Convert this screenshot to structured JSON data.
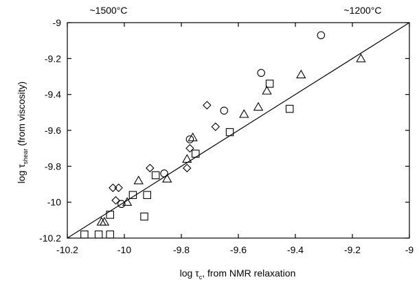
{
  "chart_data": {
    "type": "scatter",
    "title": "",
    "annotations": [
      "~1500°C",
      "~1200°C"
    ],
    "xlabel": {
      "main": "log τ",
      "sub": "c",
      "rest": ", from NMR relaxation"
    },
    "ylabel": {
      "main": "log τ",
      "sub": "shear",
      "rest": " (from viscosity)"
    },
    "xlim": [
      -10.2,
      -9.0
    ],
    "ylim": [
      -10.2,
      -9.0
    ],
    "xticks": [
      -10.2,
      -10.0,
      -9.8,
      -9.6,
      -9.4,
      -9.2,
      -9.0
    ],
    "xtick_labels": [
      "-10.2",
      "-10",
      "-9.8",
      "-9.6",
      "-9.4",
      "-9.2",
      "-9"
    ],
    "yticks": [
      -10.2,
      -10.0,
      -9.8,
      -9.6,
      -9.4,
      -9.2,
      -9.0
    ],
    "ytick_labels": [
      "-10.2",
      "-10",
      "-9.8",
      "-9.6",
      "-9.4",
      "-9.2",
      "-9"
    ],
    "grid": false,
    "reference_line": {
      "x": [
        -10.2,
        -9.0
      ],
      "y": [
        -10.2,
        -9.0
      ]
    },
    "series": [
      {
        "marker": "circle",
        "x": [
          -9.31,
          -9.52,
          -9.65,
          -9.77,
          -9.86,
          -10.01
        ],
        "y": [
          -9.07,
          -9.28,
          -9.49,
          -9.65,
          -9.84,
          -10.01
        ]
      },
      {
        "marker": "triangle",
        "x": [
          -9.17,
          -9.38,
          -9.5,
          -9.53,
          -9.58,
          -9.76,
          -9.78,
          -9.85,
          -9.95,
          -9.99,
          -10.08,
          -10.07
        ],
        "y": [
          -9.2,
          -9.29,
          -9.38,
          -9.47,
          -9.51,
          -9.64,
          -9.76,
          -9.87,
          -9.88,
          -10.0,
          -10.11,
          -10.11
        ]
      },
      {
        "marker": "square",
        "x": [
          -9.49,
          -9.42,
          -9.63,
          -9.75,
          -9.89,
          -9.97,
          -9.92,
          -10.05,
          -9.93,
          -10.14,
          -10.09,
          -10.05
        ],
        "y": [
          -9.34,
          -9.48,
          -9.61,
          -9.73,
          -9.85,
          -9.96,
          -9.96,
          -10.07,
          -10.08,
          -10.18,
          -10.18,
          -10.18
        ]
      },
      {
        "marker": "diamond",
        "x": [
          -9.71,
          -9.68,
          -9.77,
          -9.78,
          -9.91,
          -10.02,
          -10.04,
          -10.03
        ],
        "y": [
          -9.46,
          -9.58,
          -9.7,
          -9.81,
          -9.81,
          -9.92,
          -9.92,
          -9.99
        ]
      }
    ]
  }
}
